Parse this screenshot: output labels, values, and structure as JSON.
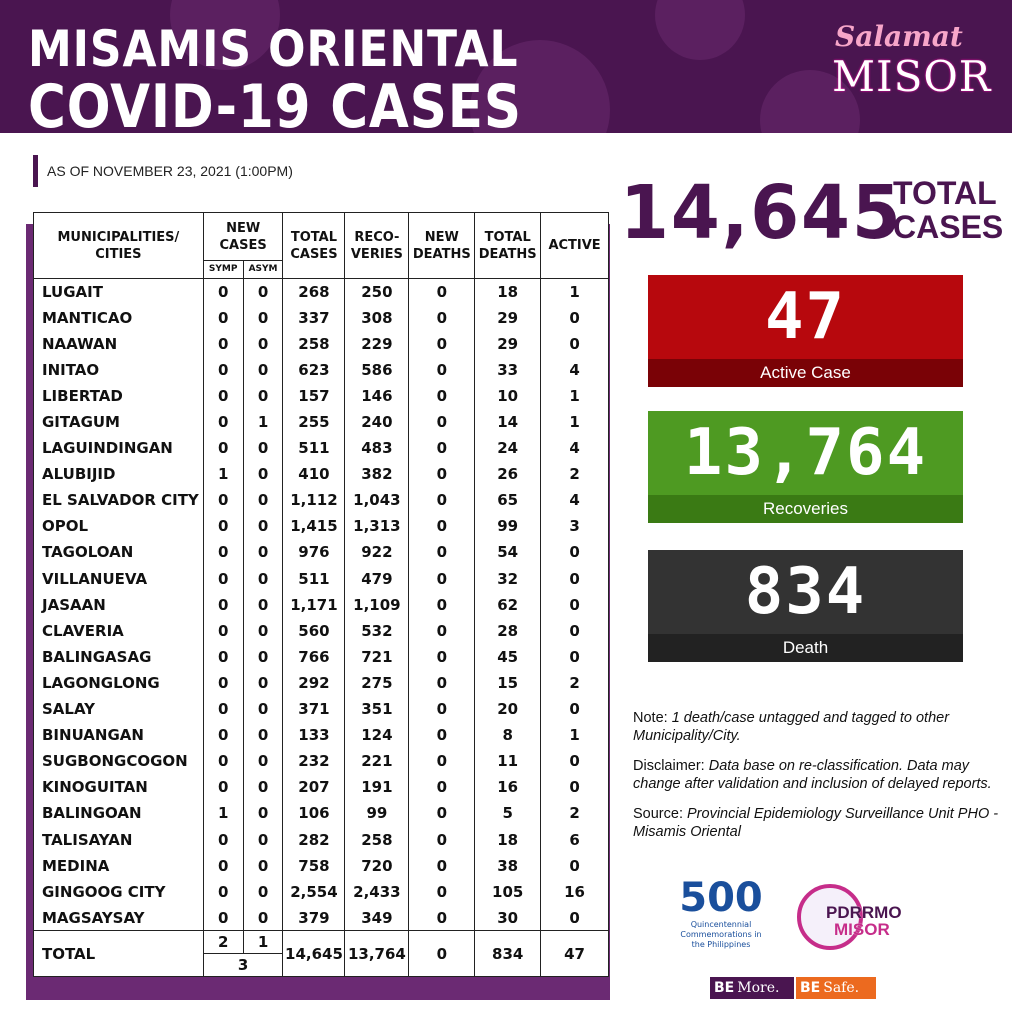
{
  "header": {
    "title_line1": "MISAMIS ORIENTAL",
    "title_line2": "COVID-19 CASES",
    "logo_salamat": "Salamat",
    "logo_misor": "MISOR"
  },
  "as_of": "AS OF NOVEMBER 23, 2021 (1:00PM)",
  "table": {
    "headers": {
      "municipality": "MUNICIPALITIES/ CITIES",
      "new_cases": "NEW CASES",
      "symp": "SYMP",
      "asym": "ASYM",
      "total_cases": "TOTAL CASES",
      "recoveries": "RECO- VERIES",
      "new_deaths": "NEW DEATHS",
      "total_deaths": "TOTAL DEATHS",
      "active": "ACTIVE"
    },
    "rows": [
      {
        "name": "LUGAIT",
        "symp": "0",
        "asym": "0",
        "total": "268",
        "recov": "250",
        "new_deaths": "0",
        "total_deaths": "18",
        "active": "1"
      },
      {
        "name": "MANTICAO",
        "symp": "0",
        "asym": "0",
        "total": "337",
        "recov": "308",
        "new_deaths": "0",
        "total_deaths": "29",
        "active": "0"
      },
      {
        "name": "NAAWAN",
        "symp": "0",
        "asym": "0",
        "total": "258",
        "recov": "229",
        "new_deaths": "0",
        "total_deaths": "29",
        "active": "0"
      },
      {
        "name": "INITAO",
        "symp": "0",
        "asym": "0",
        "total": "623",
        "recov": "586",
        "new_deaths": "0",
        "total_deaths": "33",
        "active": "4"
      },
      {
        "name": "LIBERTAD",
        "symp": "0",
        "asym": "0",
        "total": "157",
        "recov": "146",
        "new_deaths": "0",
        "total_deaths": "10",
        "active": "1"
      },
      {
        "name": "GITAGUM",
        "symp": "0",
        "asym": "1",
        "total": "255",
        "recov": "240",
        "new_deaths": "0",
        "total_deaths": "14",
        "active": "1"
      },
      {
        "name": "LAGUINDINGAN",
        "symp": "0",
        "asym": "0",
        "total": "511",
        "recov": "483",
        "new_deaths": "0",
        "total_deaths": "24",
        "active": "4"
      },
      {
        "name": "ALUBIJID",
        "symp": "1",
        "asym": "0",
        "total": "410",
        "recov": "382",
        "new_deaths": "0",
        "total_deaths": "26",
        "active": "2"
      },
      {
        "name": "EL SALVADOR CITY",
        "symp": "0",
        "asym": "0",
        "total": "1,112",
        "recov": "1,043",
        "new_deaths": "0",
        "total_deaths": "65",
        "active": "4"
      },
      {
        "name": "OPOL",
        "symp": "0",
        "asym": "0",
        "total": "1,415",
        "recov": "1,313",
        "new_deaths": "0",
        "total_deaths": "99",
        "active": "3"
      },
      {
        "name": "TAGOLOAN",
        "symp": "0",
        "asym": "0",
        "total": "976",
        "recov": "922",
        "new_deaths": "0",
        "total_deaths": "54",
        "active": "0"
      },
      {
        "name": "VILLANUEVA",
        "symp": "0",
        "asym": "0",
        "total": "511",
        "recov": "479",
        "new_deaths": "0",
        "total_deaths": "32",
        "active": "0"
      },
      {
        "name": "JASAAN",
        "symp": "0",
        "asym": "0",
        "total": "1,171",
        "recov": "1,109",
        "new_deaths": "0",
        "total_deaths": "62",
        "active": "0"
      },
      {
        "name": "CLAVERIA",
        "symp": "0",
        "asym": "0",
        "total": "560",
        "recov": "532",
        "new_deaths": "0",
        "total_deaths": "28",
        "active": "0"
      },
      {
        "name": "BALINGASAG",
        "symp": "0",
        "asym": "0",
        "total": "766",
        "recov": "721",
        "new_deaths": "0",
        "total_deaths": "45",
        "active": "0"
      },
      {
        "name": "LAGONGLONG",
        "symp": "0",
        "asym": "0",
        "total": "292",
        "recov": "275",
        "new_deaths": "0",
        "total_deaths": "15",
        "active": "2"
      },
      {
        "name": "SALAY",
        "symp": "0",
        "asym": "0",
        "total": "371",
        "recov": "351",
        "new_deaths": "0",
        "total_deaths": "20",
        "active": "0"
      },
      {
        "name": "BINUANGAN",
        "symp": "0",
        "asym": "0",
        "total": "133",
        "recov": "124",
        "new_deaths": "0",
        "total_deaths": "8",
        "active": "1"
      },
      {
        "name": "SUGBONGCOGON",
        "symp": "0",
        "asym": "0",
        "total": "232",
        "recov": "221",
        "new_deaths": "0",
        "total_deaths": "11",
        "active": "0"
      },
      {
        "name": "KINOGUITAN",
        "symp": "0",
        "asym": "0",
        "total": "207",
        "recov": "191",
        "new_deaths": "0",
        "total_deaths": "16",
        "active": "0"
      },
      {
        "name": "BALINGOAN",
        "symp": "1",
        "asym": "0",
        "total": "106",
        "recov": "99",
        "new_deaths": "0",
        "total_deaths": "5",
        "active": "2"
      },
      {
        "name": "TALISAYAN",
        "symp": "0",
        "asym": "0",
        "total": "282",
        "recov": "258",
        "new_deaths": "0",
        "total_deaths": "18",
        "active": "6"
      },
      {
        "name": "MEDINA",
        "symp": "0",
        "asym": "0",
        "total": "758",
        "recov": "720",
        "new_deaths": "0",
        "total_deaths": "38",
        "active": "0"
      },
      {
        "name": "GINGOOG CITY",
        "symp": "0",
        "asym": "0",
        "total": "2,554",
        "recov": "2,433",
        "new_deaths": "0",
        "total_deaths": "105",
        "active": "16"
      },
      {
        "name": "MAGSAYSAY",
        "symp": "0",
        "asym": "0",
        "total": "379",
        "recov": "349",
        "new_deaths": "0",
        "total_deaths": "30",
        "active": "0"
      }
    ],
    "total": {
      "label": "TOTAL",
      "symp": "2",
      "asym": "1",
      "new_sum": "3",
      "total": "14,645",
      "recov": "13,764",
      "new_deaths": "0",
      "total_deaths": "834",
      "active": "47"
    }
  },
  "summary": {
    "total_cases": "14,645",
    "total_label_1": "TOTAL",
    "total_label_2": "CASES",
    "active_value": "47",
    "active_label": "Active Case",
    "recoveries_value": "13,764",
    "recoveries_label": "Recoveries",
    "death_value": "834",
    "death_label": "Death"
  },
  "notes": {
    "note_prefix": "Note:",
    "note_text": "1 death/case untagged and tagged to other Municipality/City.",
    "disclaimer_prefix": "Disclaimer:",
    "disclaimer_text": "Data base on re-classification. Data may change after validation and inclusion of delayed reports.",
    "source_prefix": "Source:",
    "source_text": "Provincial Epidemiology Surveillance Unit PHO - Misamis Oriental"
  },
  "logos": {
    "q500_number": "500",
    "q500_text": "Quincentennial Commemorations in the Philippines",
    "pdrrmo_line1": "PDRRMO",
    "pdrrmo_line2": "MISOR",
    "more_label": "More.",
    "safe_label": "Safe.",
    "be_icon": "BE"
  },
  "colors": {
    "brand_purple": "#4a1550",
    "active_red": "#b7080d",
    "recoveries_green": "#4e9a22",
    "death_dark": "#333333",
    "safe_orange": "#ec6a1f"
  }
}
